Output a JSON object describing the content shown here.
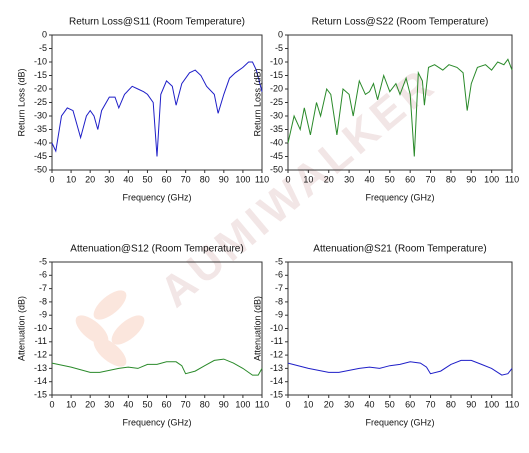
{
  "watermark": "AUMIWALKER",
  "chart_data": [
    {
      "type": "line",
      "title": "Return Loss@S11 (Room Temperature)",
      "xlabel": "Frequency (GHz)",
      "ylabel": "Return Loss (dB)",
      "x": [
        0,
        2,
        5,
        8,
        11,
        15,
        18,
        20,
        22,
        24,
        26,
        30,
        33,
        35,
        38,
        42,
        45,
        48,
        50,
        53,
        55,
        57,
        60,
        63,
        65,
        68,
        72,
        75,
        78,
        81,
        85,
        87,
        90,
        93,
        96,
        100,
        103,
        105,
        107,
        110
      ],
      "series": [
        {
          "color": "#1f1fc8",
          "values": [
            -40,
            -43,
            -30,
            -27,
            -28,
            -38,
            -30,
            -28,
            -30,
            -35,
            -28,
            -23,
            -23,
            -27,
            -22,
            -19,
            -20,
            -21,
            -22,
            -25,
            -45,
            -22,
            -17,
            -19,
            -26,
            -18,
            -14,
            -13,
            -15,
            -19,
            -22,
            -29,
            -22,
            -16,
            -14,
            -12,
            -10,
            -10,
            -13,
            -21
          ]
        }
      ],
      "xlim": [
        0,
        110
      ],
      "xticks": [
        0,
        10,
        20,
        30,
        40,
        50,
        60,
        70,
        80,
        90,
        100,
        110
      ],
      "ylim": [
        -50,
        0
      ],
      "yticks": [
        0,
        -5,
        -10,
        -15,
        -20,
        -25,
        -30,
        -35,
        -40,
        -45,
        -50
      ]
    },
    {
      "type": "line",
      "title": "Return Loss@S22 (Room Temperature)",
      "xlabel": "Frequency (GHz)",
      "ylabel": "Return Loss (dB)",
      "x": [
        0,
        3,
        6,
        8,
        11,
        14,
        16,
        19,
        21,
        24,
        27,
        30,
        32,
        35,
        38,
        40,
        42,
        44,
        47,
        50,
        53,
        55,
        58,
        60,
        62,
        64,
        66,
        67,
        69,
        72,
        76,
        79,
        83,
        86,
        88,
        90,
        93,
        97,
        100,
        103,
        106,
        108,
        110
      ],
      "series": [
        {
          "color": "#2a8a2a",
          "values": [
            -40,
            -30,
            -35,
            -27,
            -37,
            -25,
            -30,
            -20,
            -22,
            -37,
            -20,
            -22,
            -30,
            -17,
            -22,
            -21,
            -18,
            -24,
            -15,
            -21,
            -18,
            -22,
            -16,
            -22,
            -45,
            -14,
            -17,
            -26,
            -12,
            -11,
            -13,
            -11,
            -12,
            -14,
            -28,
            -18,
            -12,
            -11,
            -13,
            -10,
            -11,
            -9,
            -13
          ]
        }
      ],
      "xlim": [
        0,
        110
      ],
      "xticks": [
        0,
        10,
        20,
        30,
        40,
        50,
        60,
        70,
        80,
        90,
        100,
        110
      ],
      "ylim": [
        -50,
        0
      ],
      "yticks": [
        0,
        -5,
        -10,
        -15,
        -20,
        -25,
        -30,
        -35,
        -40,
        -45,
        -50
      ]
    },
    {
      "type": "line",
      "title": "Attenuation@S12 (Room Temperature)",
      "xlabel": "Frequency (GHz)",
      "ylabel": "Attenuation (dB)",
      "x": [
        0,
        10,
        20,
        25,
        35,
        40,
        45,
        50,
        55,
        60,
        65,
        68,
        70,
        75,
        80,
        85,
        90,
        95,
        100,
        105,
        108,
        110
      ],
      "series": [
        {
          "color": "#2a8a2a",
          "values": [
            -12.6,
            -12.9,
            -13.3,
            -13.3,
            -13.0,
            -12.9,
            -13.0,
            -12.7,
            -12.7,
            -12.5,
            -12.5,
            -12.8,
            -13.4,
            -13.2,
            -12.8,
            -12.4,
            -12.3,
            -12.6,
            -13.0,
            -13.5,
            -13.5,
            -13.0
          ]
        }
      ],
      "xlim": [
        0,
        110
      ],
      "xticks": [
        0,
        10,
        20,
        30,
        40,
        50,
        60,
        70,
        80,
        90,
        100,
        110
      ],
      "ylim": [
        -15,
        -5
      ],
      "yticks": [
        -5,
        -6,
        -7,
        -8,
        -9,
        -10,
        -11,
        -12,
        -13,
        -14,
        -15
      ]
    },
    {
      "type": "line",
      "title": "Attenuation@S21 (Room Temperature)",
      "xlabel": "Frequency (GHz)",
      "ylabel": "Attenuation (dB)",
      "x": [
        0,
        10,
        20,
        25,
        35,
        40,
        45,
        50,
        55,
        60,
        65,
        68,
        70,
        75,
        80,
        85,
        90,
        95,
        100,
        105,
        108,
        110
      ],
      "series": [
        {
          "color": "#1f1fc8",
          "values": [
            -12.6,
            -13.0,
            -13.3,
            -13.3,
            -13.0,
            -12.9,
            -13.0,
            -12.8,
            -12.7,
            -12.5,
            -12.6,
            -12.9,
            -13.4,
            -13.2,
            -12.7,
            -12.4,
            -12.4,
            -12.7,
            -13.0,
            -13.5,
            -13.4,
            -13.0
          ]
        }
      ],
      "xlim": [
        0,
        110
      ],
      "xticks": [
        0,
        10,
        20,
        30,
        40,
        50,
        60,
        70,
        80,
        90,
        100,
        110
      ],
      "ylim": [
        -15,
        -5
      ],
      "yticks": [
        -5,
        -6,
        -7,
        -8,
        -9,
        -10,
        -11,
        -12,
        -13,
        -14,
        -15
      ]
    }
  ]
}
